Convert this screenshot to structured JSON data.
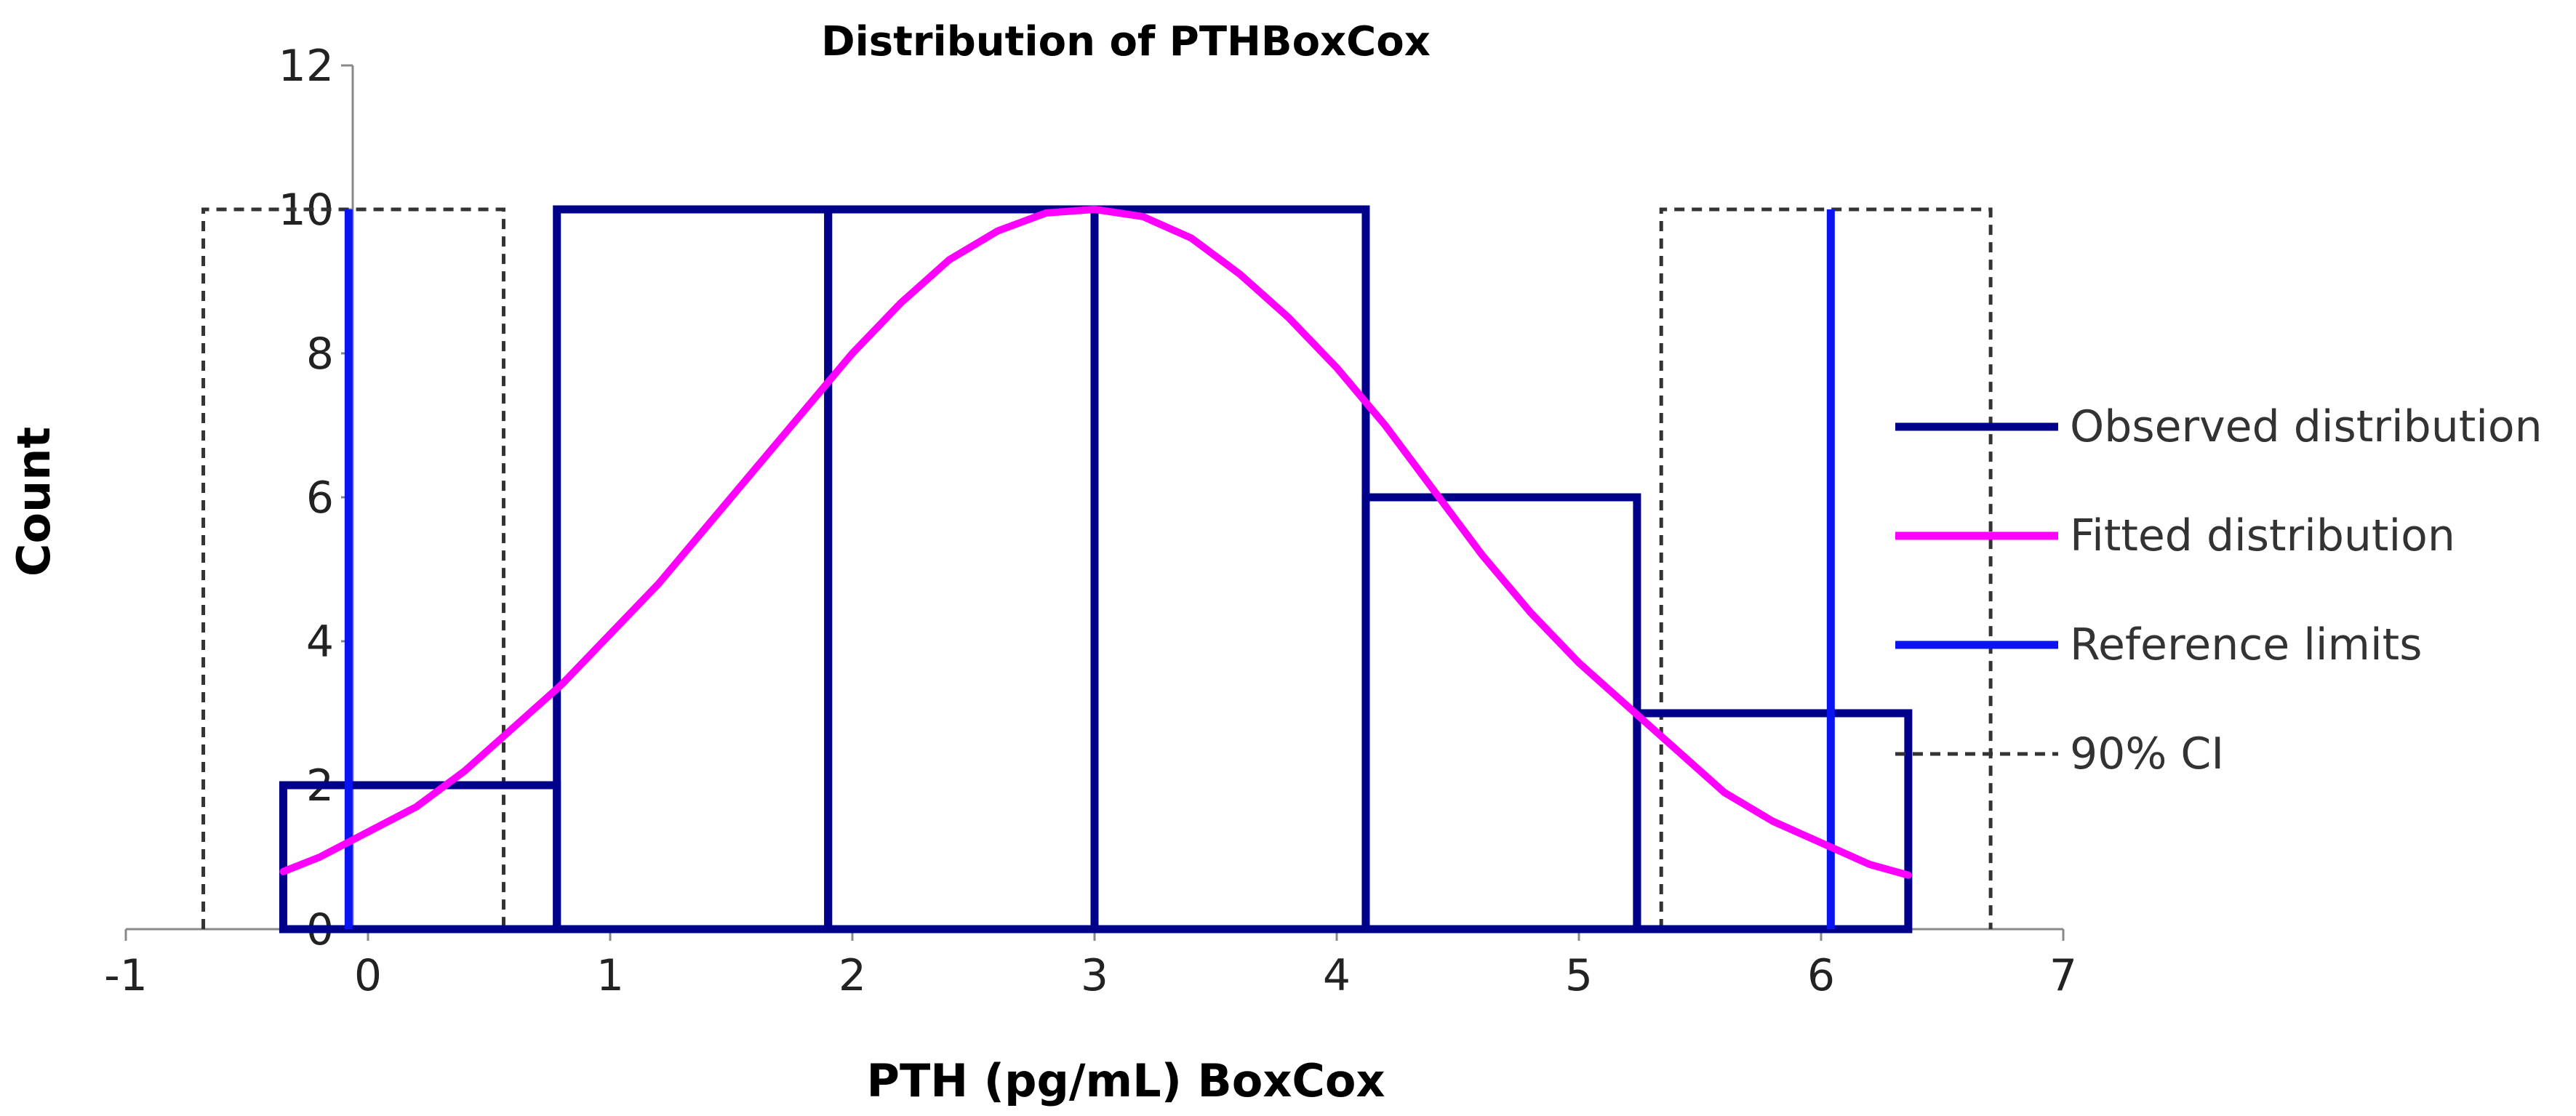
{
  "chart_data": {
    "type": "line",
    "title": "Distribution of PTHBoxCox",
    "xlabel": "PTH (pg/mL)  BoxCox",
    "ylabel": "Count",
    "xlim": [
      -1,
      7
    ],
    "ylim": [
      0,
      12
    ],
    "x_ticks": [
      "-1",
      "0",
      "1",
      "2",
      "3",
      "4",
      "5",
      "6",
      "7"
    ],
    "y_ticks": [
      "0",
      "2",
      "4",
      "6",
      "8",
      "10",
      "12"
    ],
    "grid": false,
    "legend_position": "right",
    "series": [
      {
        "name": "Observed distribution",
        "kind": "histogram",
        "color": "#00008B",
        "bins": [
          {
            "x0": -0.35,
            "x1": 0.78,
            "count": 2
          },
          {
            "x0": 0.78,
            "x1": 1.9,
            "count": 10
          },
          {
            "x0": 1.9,
            "x1": 3.0,
            "count": 10
          },
          {
            "x0": 3.0,
            "x1": 4.12,
            "count": 10
          },
          {
            "x0": 4.12,
            "x1": 5.24,
            "count": 6
          },
          {
            "x0": 5.24,
            "x1": 6.36,
            "count": 3
          }
        ]
      },
      {
        "name": "Fitted distribution",
        "kind": "curve",
        "color": "#FF00FF",
        "x": [
          -0.35,
          -0.2,
          0.0,
          0.2,
          0.4,
          0.6,
          0.8,
          1.0,
          1.2,
          1.4,
          1.6,
          1.8,
          2.0,
          2.2,
          2.4,
          2.6,
          2.8,
          3.0,
          3.2,
          3.4,
          3.6,
          3.8,
          4.0,
          4.2,
          4.4,
          4.6,
          4.8,
          5.0,
          5.2,
          5.4,
          5.6,
          5.8,
          6.0,
          6.2,
          6.36
        ],
        "y": [
          0.8,
          1.0,
          1.35,
          1.7,
          2.2,
          2.8,
          3.4,
          4.1,
          4.8,
          5.6,
          6.4,
          7.2,
          8.0,
          8.7,
          9.3,
          9.7,
          9.95,
          10.0,
          9.9,
          9.6,
          9.1,
          8.5,
          7.8,
          7.0,
          6.1,
          5.2,
          4.4,
          3.7,
          3.1,
          2.5,
          1.9,
          1.5,
          1.2,
          0.9,
          0.75
        ]
      },
      {
        "name": "Reference limits",
        "kind": "vlines",
        "color": "#0A14F0",
        "x": [
          -0.08,
          6.04
        ],
        "y": [
          0,
          10
        ]
      },
      {
        "name": "90% CI",
        "kind": "boxes",
        "color": "#333333",
        "boxes": [
          {
            "x0": -0.68,
            "x1": 0.56,
            "y0": 0,
            "y1": 10
          },
          {
            "x0": 5.34,
            "x1": 6.7,
            "y0": 0,
            "y1": 10
          }
        ]
      }
    ]
  }
}
